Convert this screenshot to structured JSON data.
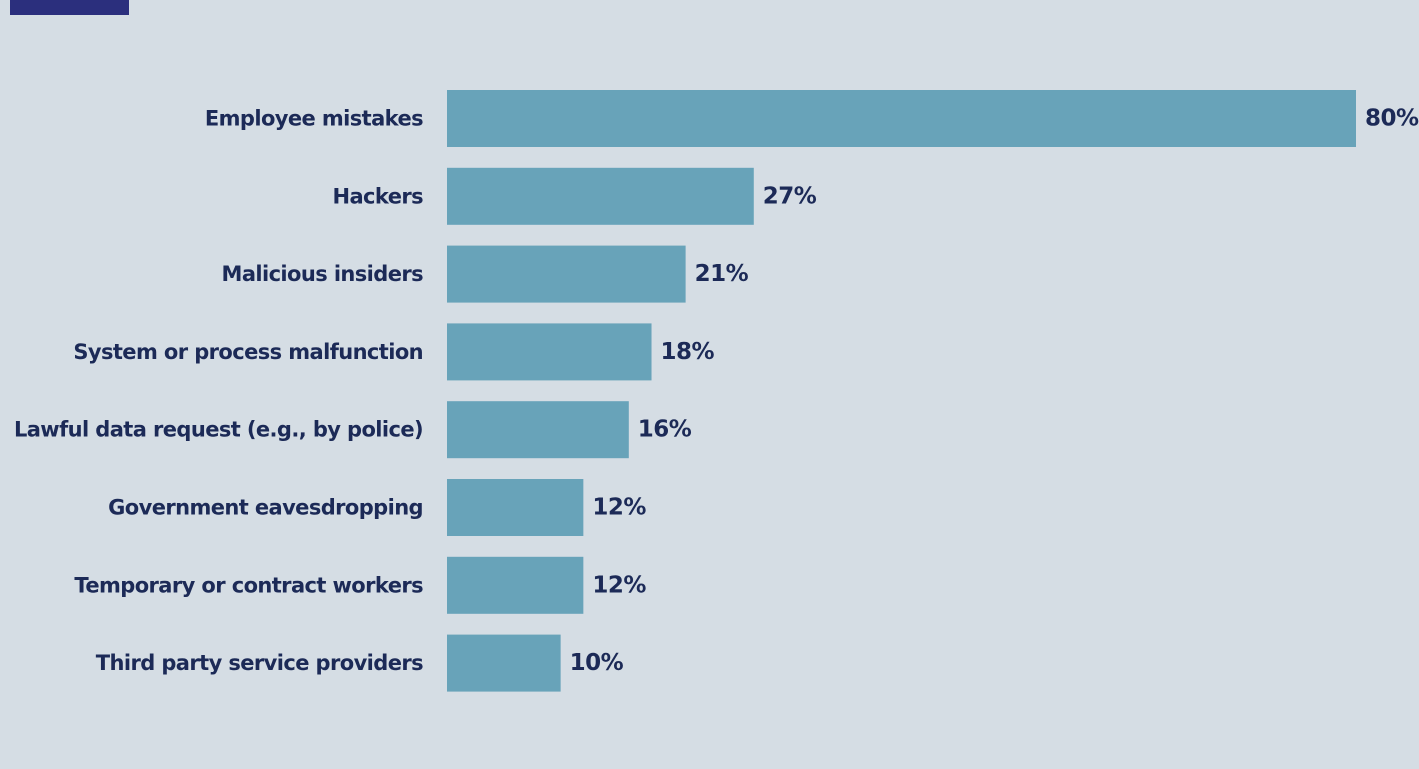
{
  "colors": {
    "background": "#d5dde4",
    "bar": "#68a3b9",
    "text": "#1c2a57",
    "corner_block": "#2b2f7d"
  },
  "chart_data": {
    "type": "bar",
    "orientation": "horizontal",
    "categories": [
      "Employee mistakes",
      "Hackers",
      "Malicious insiders",
      "System or process malfunction",
      "Lawful data request (e.g., by police)",
      "Government eavesdropping",
      "Temporary or contract workers",
      "Third party service providers"
    ],
    "values": [
      80,
      27,
      21,
      18,
      16,
      12,
      12,
      10
    ],
    "value_labels": [
      "80%",
      "27%",
      "21%",
      "18%",
      "16%",
      "12%",
      "12%",
      "10%"
    ],
    "title": "",
    "xlabel": "",
    "ylabel": "",
    "xlim": [
      0,
      80
    ],
    "grid": false,
    "legend": "none"
  }
}
